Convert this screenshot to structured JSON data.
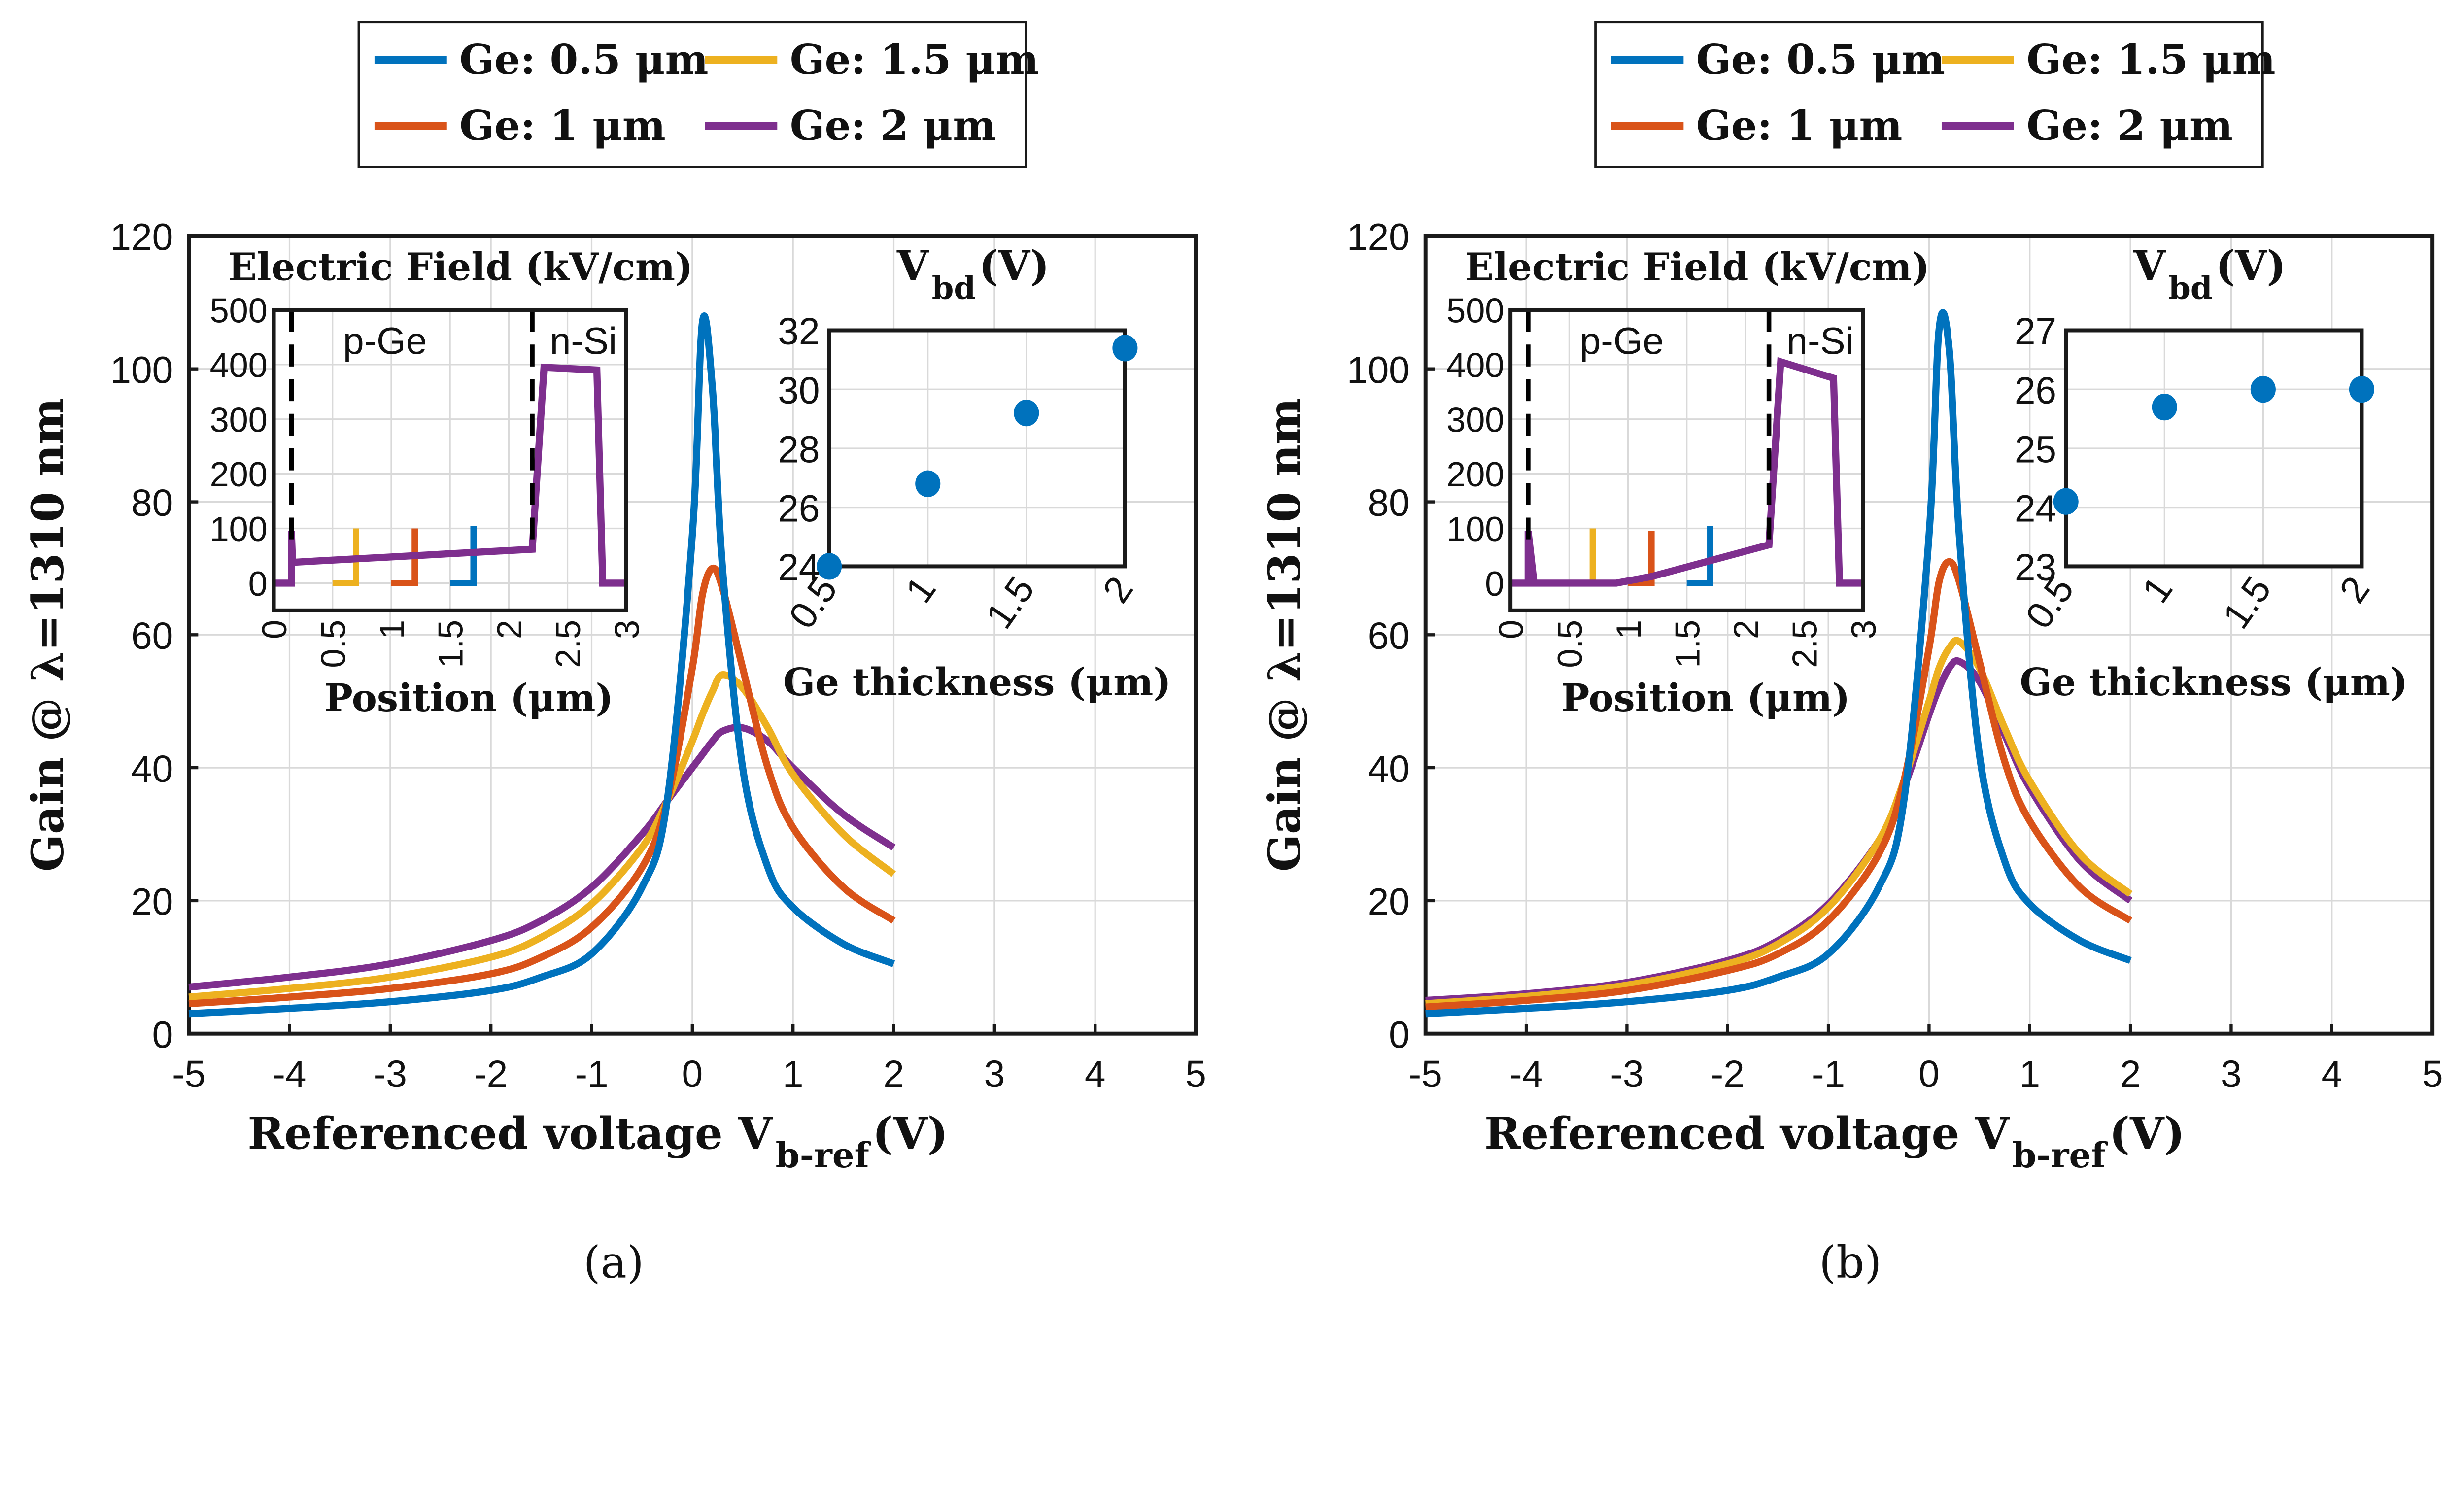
{
  "colors": {
    "blue": "#0072BD",
    "orange": "#D95319",
    "yellow": "#EDB120",
    "purple": "#7E2F8E"
  },
  "chart_data": [
    {
      "type": "line",
      "panel": "(a)",
      "title": "",
      "xlabel": {
        "main": "Referenced voltage V",
        "sub": "b-ref",
        "unit": " (V)"
      },
      "ylabel": "Gain @ λ=1310 nm",
      "xlim": [
        -5,
        5
      ],
      "ylim": [
        0,
        120
      ],
      "xticks": [
        -5,
        -4,
        -3,
        -2,
        -1,
        0,
        1,
        2,
        3,
        4,
        5
      ],
      "yticks": [
        0,
        20,
        40,
        60,
        80,
        100,
        120
      ],
      "grid": true,
      "legend": {
        "placement": "top",
        "entries": [
          "Ge: 0.5 μm",
          "Ge: 1.5 μm",
          "Ge: 1 μm",
          "Ge: 2 μm"
        ]
      },
      "x": [
        -5,
        -4,
        -3,
        -2,
        -1.5,
        -1,
        -0.5,
        -0.25,
        0,
        0.1,
        0.2,
        0.3,
        0.5,
        0.75,
        1,
        1.5,
        2
      ],
      "series": [
        {
          "name": "Ge: 0.5 μm",
          "color": "blue",
          "values": [
            3,
            3.8,
            4.8,
            6.5,
            8.5,
            12,
            22,
            35,
            75,
            107,
            97,
            70,
            40,
            25,
            19,
            13.5,
            10.5
          ]
        },
        {
          "name": "Ge: 1 μm",
          "color": "orange",
          "values": [
            4.5,
            5.5,
            6.8,
            9,
            11.5,
            16,
            25,
            35,
            55,
            66,
            70,
            67,
            55,
            40,
            31,
            22,
            17
          ]
        },
        {
          "name": "Ge: 1.5 μm",
          "color": "yellow",
          "values": [
            5.5,
            6.8,
            8.5,
            11.5,
            14.5,
            19.5,
            28,
            35,
            44,
            48,
            51.5,
            54,
            52,
            46,
            39,
            30,
            24
          ]
        },
        {
          "name": "Ge: 2 μm",
          "color": "purple",
          "values": [
            7,
            8.5,
            10.5,
            14,
            17,
            22,
            30,
            35,
            40,
            42,
            44,
            45.5,
            46,
            44,
            40,
            33,
            28
          ]
        }
      ],
      "inset_field": {
        "title": "Electric Field (kV/cm)",
        "xlabel": "Position (μm)",
        "xlim": [
          0,
          3
        ],
        "ylim": [
          -50,
          500
        ],
        "xticks": [
          "0",
          "0.5",
          "1",
          "1.5",
          "2",
          "2.5",
          "3"
        ],
        "yticks": [
          "0",
          "100",
          "200",
          "300",
          "400",
          "500"
        ],
        "region_labels": [
          "p-Ge",
          "n-Si"
        ],
        "dashed_x": [
          0.15,
          2.2
        ],
        "series": [
          {
            "color": "yellow",
            "points": [
              [
                0.5,
                0
              ],
              [
                0.7,
                0
              ],
              [
                0.7,
                100
              ]
            ]
          },
          {
            "color": "orange",
            "points": [
              [
                1.0,
                0
              ],
              [
                1.2,
                0
              ],
              [
                1.2,
                100
              ]
            ]
          },
          {
            "color": "blue",
            "points": [
              [
                1.5,
                0
              ],
              [
                1.7,
                0
              ],
              [
                1.7,
                105
              ]
            ]
          },
          {
            "color": "purple",
            "points": [
              [
                0,
                0
              ],
              [
                0.15,
                0
              ],
              [
                0.15,
                95
              ],
              [
                0.16,
                38
              ],
              [
                2.2,
                62
              ],
              [
                2.3,
                395
              ],
              [
                2.75,
                390
              ],
              [
                2.8,
                0
              ],
              [
                3,
                0
              ]
            ]
          }
        ]
      },
      "inset_vbd": {
        "title": "V",
        "title_sub": "bd",
        "title_unit": " (V)",
        "xlabel": "Ge thickness (μm)",
        "xlim": [
          0.5,
          2
        ],
        "ylim": [
          24,
          32
        ],
        "xticks": [
          "0.5",
          "1",
          "1.5",
          "2"
        ],
        "yticks": [
          "24",
          "26",
          "28",
          "30",
          "32"
        ],
        "x": [
          0.5,
          1,
          1.5,
          2
        ],
        "values": [
          24,
          26.8,
          29.2,
          31.4
        ]
      }
    },
    {
      "type": "line",
      "panel": "(b)",
      "title": "",
      "xlabel": {
        "main": "Referenced voltage V",
        "sub": "b-ref",
        "unit": " (V)"
      },
      "ylabel": "Gain @ λ=1310 nm",
      "xlim": [
        -5,
        5
      ],
      "ylim": [
        0,
        120
      ],
      "xticks": [
        -5,
        -4,
        -3,
        -2,
        -1,
        0,
        1,
        2,
        3,
        4,
        5
      ],
      "yticks": [
        0,
        20,
        40,
        60,
        80,
        100,
        120
      ],
      "grid": true,
      "legend": {
        "placement": "top",
        "entries": [
          "Ge: 0.5 μm",
          "Ge: 1.5 μm",
          "Ge: 1 μm",
          "Ge: 2 μm"
        ]
      },
      "x": [
        -5,
        -4,
        -3,
        -2,
        -1.5,
        -1,
        -0.5,
        -0.25,
        0,
        0.1,
        0.2,
        0.3,
        0.5,
        0.75,
        1,
        1.5,
        2
      ],
      "series": [
        {
          "name": "Ge: 0.5 μm",
          "color": "blue",
          "values": [
            3,
            3.8,
            4.8,
            6.5,
            8.5,
            12,
            22,
            35,
            75,
            106,
            103,
            75,
            42,
            26,
            19.5,
            14,
            11
          ]
        },
        {
          "name": "Ge: 1 μm",
          "color": "orange",
          "values": [
            4,
            5,
            6.5,
            9.5,
            12,
            17,
            27,
            38,
            58,
            68,
            71,
            68,
            56,
            41,
            32,
            22,
            17
          ]
        },
        {
          "name": "Ge: 1.5 μm",
          "color": "yellow",
          "values": [
            4.5,
            5.6,
            7.3,
            10.5,
            13.5,
            19,
            29,
            38,
            50,
            55,
            58,
            59,
            55,
            46,
            38,
            27,
            21
          ]
        },
        {
          "name": "Ge: 2 μm",
          "color": "purple",
          "values": [
            5,
            6,
            7.7,
            11,
            14,
            19.5,
            29,
            37,
            48,
            52,
            55,
            56,
            53,
            45,
            37,
            26,
            20
          ]
        }
      ],
      "inset_field": {
        "title": "Electric Field (kV/cm)",
        "xlabel": "Position (μm)",
        "xlim": [
          0,
          3
        ],
        "ylim": [
          -50,
          500
        ],
        "xticks": [
          "0",
          "0.5",
          "1",
          "1.5",
          "2",
          "2.5",
          "3"
        ],
        "yticks": [
          "0",
          "100",
          "200",
          "300",
          "400",
          "500"
        ],
        "region_labels": [
          "p-Ge",
          "n-Si"
        ],
        "dashed_x": [
          0.15,
          2.2
        ],
        "series": [
          {
            "color": "yellow",
            "points": [
              [
                0.5,
                0
              ],
              [
                0.7,
                0
              ],
              [
                0.7,
                100
              ]
            ]
          },
          {
            "color": "orange",
            "points": [
              [
                1.0,
                0
              ],
              [
                1.2,
                0
              ],
              [
                1.2,
                95
              ]
            ]
          },
          {
            "color": "blue",
            "points": [
              [
                1.5,
                0
              ],
              [
                1.7,
                0
              ],
              [
                1.7,
                105
              ]
            ]
          },
          {
            "color": "purple",
            "points": [
              [
                0,
                0
              ],
              [
                0.15,
                0
              ],
              [
                0.15,
                95
              ],
              [
                0.2,
                0
              ],
              [
                0.9,
                0
              ],
              [
                1.2,
                12
              ],
              [
                2.2,
                70
              ],
              [
                2.3,
                405
              ],
              [
                2.75,
                375
              ],
              [
                2.8,
                0
              ],
              [
                3,
                0
              ]
            ]
          }
        ]
      },
      "inset_vbd": {
        "title": "V",
        "title_sub": "bd",
        "title_unit": " (V)",
        "xlabel": "Ge thickness (μm)",
        "xlim": [
          0.5,
          2
        ],
        "ylim": [
          23,
          27
        ],
        "xticks": [
          "0.5",
          "1",
          "1.5",
          "2"
        ],
        "yticks": [
          "23",
          "24",
          "25",
          "26",
          "27"
        ],
        "x": [
          0.5,
          1,
          1.5,
          2
        ],
        "values": [
          24.1,
          25.7,
          26,
          26
        ]
      }
    }
  ]
}
